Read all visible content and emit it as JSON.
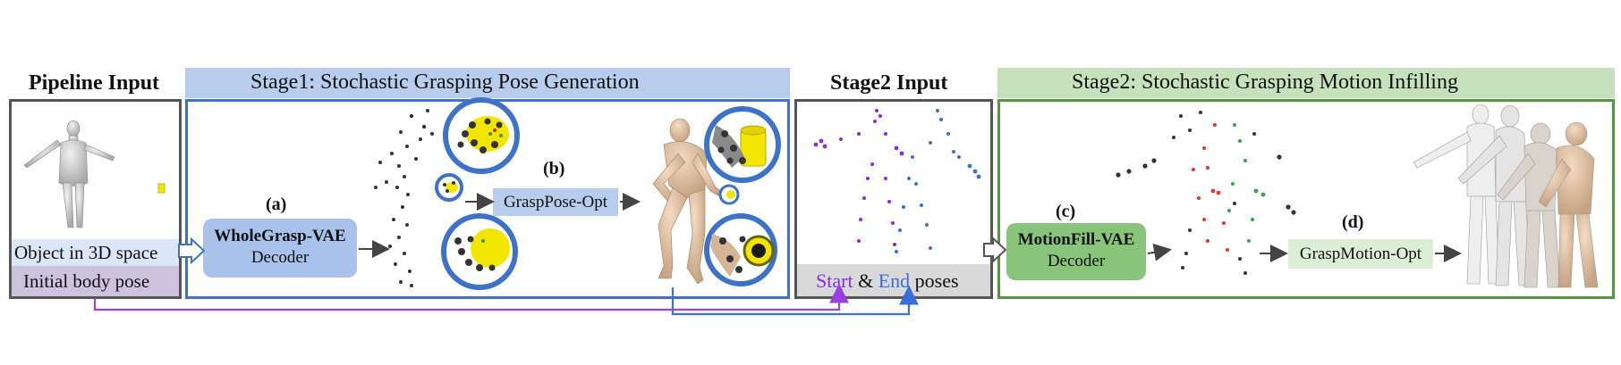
{
  "pipeline_input": {
    "title": "Pipeline Input",
    "object_label": "Object in 3D space",
    "pose_label": "Initial body pose"
  },
  "stage1": {
    "title": "Stage1: Stochastic Grasping Pose Generation",
    "label_a": "(a)",
    "vae_name": "WholeGrasp-VAE",
    "vae_sub": "Decoder",
    "label_b": "(b)",
    "opt": "GraspPose-Opt"
  },
  "stage2_input": {
    "title": "Stage2 Input",
    "start": "Start",
    "amp": "&",
    "end": "End",
    "poses": "poses"
  },
  "stage2": {
    "title": "Stage2: Stochastic Grasping Motion Infilling",
    "label_c": "(c)",
    "vae_name": "MotionFill-VAE",
    "vae_sub": "Decoder",
    "label_d": "(d)",
    "opt": "GraspMotion-Opt"
  },
  "colors": {
    "stage1_border": "#3c72c9",
    "stage2_border": "#4f9a3b",
    "start": "#8a2be2",
    "end": "#3a6fd8",
    "object": "#f2e600"
  }
}
